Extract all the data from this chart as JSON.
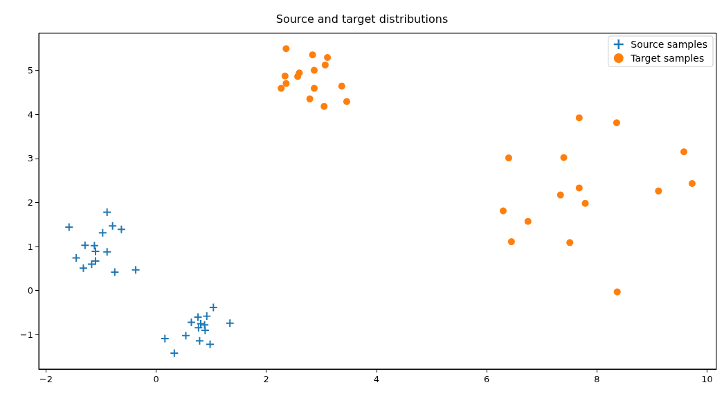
{
  "chart_data": {
    "type": "scatter",
    "title": "Source and target distributions",
    "xlim": [
      -2.13,
      10.17
    ],
    "xticks": [
      -2,
      0,
      2,
      4,
      6,
      8,
      10
    ],
    "ylim": [
      -1.78,
      5.84
    ],
    "yticks": [
      -1,
      0,
      1,
      2,
      3,
      4,
      5
    ],
    "legend": "top right",
    "series": [
      {
        "name": "Source samples",
        "color": "#1f77b4",
        "marker": "cross",
        "x": [
          -0.89,
          -1.58,
          -0.79,
          -0.63,
          -0.97,
          -1.29,
          -1.12,
          -1.1,
          -0.89,
          -1.45,
          -1.1,
          -1.17,
          -1.32,
          -0.75,
          -0.37,
          1.04,
          0.76,
          0.92,
          0.64,
          0.81,
          0.88,
          0.77,
          0.89,
          1.34,
          0.54,
          0.16,
          0.79,
          0.98,
          0.33
        ],
        "values": [
          1.78,
          1.44,
          1.47,
          1.39,
          1.31,
          1.03,
          1.02,
          0.89,
          0.88,
          0.74,
          0.67,
          0.6,
          0.51,
          0.42,
          0.47,
          -0.38,
          -0.6,
          -0.58,
          -0.72,
          -0.75,
          -0.78,
          -0.84,
          -0.9,
          -0.74,
          -1.02,
          -1.09,
          -1.14,
          -1.22,
          -1.42
        ]
      },
      {
        "name": "Target samples",
        "color": "#ff7f0e",
        "marker": "circle",
        "x": [
          2.36,
          2.84,
          3.11,
          3.07,
          2.87,
          2.6,
          2.57,
          2.34,
          2.36,
          2.27,
          2.87,
          3.37,
          2.79,
          3.05,
          3.46,
          6.4,
          7.68,
          8.36,
          7.4,
          9.58,
          9.73,
          9.12,
          7.34,
          7.68,
          7.79,
          6.3,
          6.75,
          6.45,
          7.51,
          8.37
        ],
        "values": [
          5.49,
          5.35,
          5.29,
          5.12,
          5.0,
          4.94,
          4.86,
          4.87,
          4.7,
          4.59,
          4.59,
          4.64,
          4.35,
          4.18,
          4.29,
          3.01,
          3.92,
          3.81,
          3.02,
          3.15,
          2.43,
          2.26,
          2.17,
          2.33,
          1.98,
          1.81,
          1.57,
          1.11,
          1.09,
          -0.03
        ]
      }
    ]
  }
}
